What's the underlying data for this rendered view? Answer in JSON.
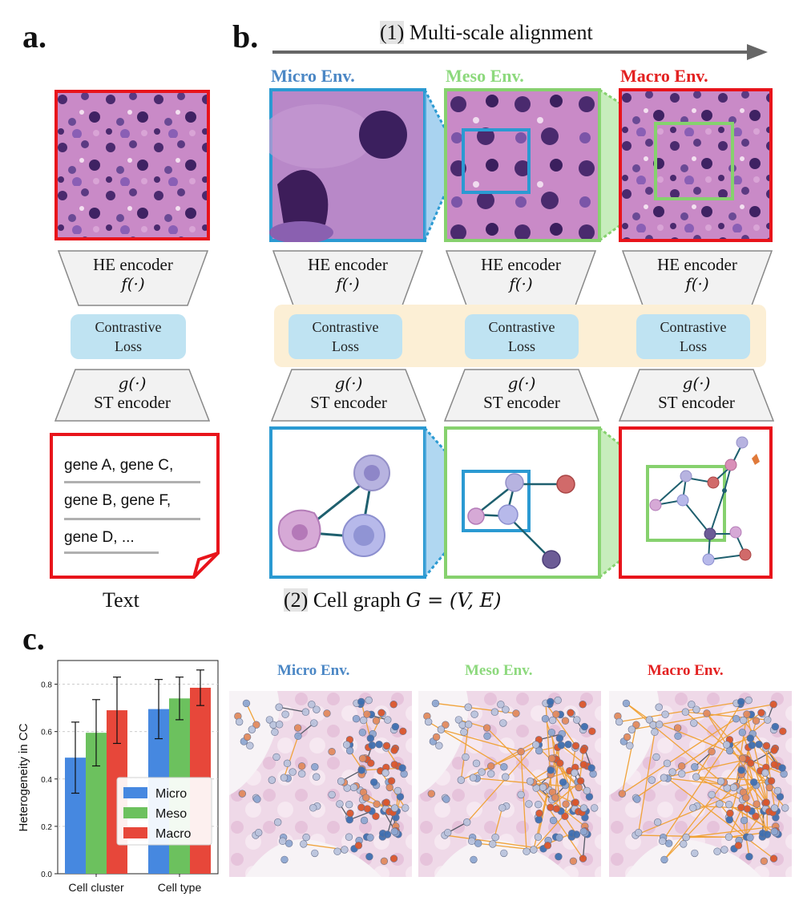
{
  "panels": {
    "a": "a.",
    "b": "b.",
    "c": "c."
  },
  "alignment": {
    "num": "(1)",
    "text": " Multi-scale alignment"
  },
  "env_titles": {
    "micro": "Micro Env.",
    "meso": "Meso Env.",
    "macro": "Macro Env."
  },
  "he_encoder": {
    "label_a": "HE  encoder",
    "label": "HE encoder",
    "func": "f(·)"
  },
  "st_encoder": {
    "label": "ST encoder",
    "func": "g(·)"
  },
  "contrastive": {
    "line1": "Contrastive",
    "line2": "Loss"
  },
  "text_doc": {
    "lines": [
      "gene A, gene C,",
      "gene B, gene F,",
      "gene D, ..."
    ],
    "caption": "Text"
  },
  "cell_graph": {
    "num": "(2)",
    "text": " Cell graph ",
    "formula": "G  =  (V, E)"
  },
  "chart_data": {
    "type": "bar",
    "categories": [
      "Cell cluster",
      "Cell type"
    ],
    "series": [
      {
        "name": "Micro",
        "values": [
          0.49,
          0.695
        ],
        "err": [
          0.15,
          0.125
        ]
      },
      {
        "name": "Meso",
        "values": [
          0.595,
          0.74
        ],
        "err": [
          0.14,
          0.09
        ]
      },
      {
        "name": "Macro",
        "values": [
          0.69,
          0.785
        ],
        "err": [
          0.14,
          0.075
        ]
      }
    ],
    "ylabel": "Heterogeneity in CC",
    "ylim": [
      0,
      0.9
    ],
    "yticks": [
      "0.0",
      "0.2",
      "0.4",
      "0.6",
      "0.8"
    ],
    "legend_position": "lower-right",
    "grid": "horizontal dashed"
  },
  "colors": {
    "micro": "#2b9ad2",
    "meso": "#86d16e",
    "macro": "#e8141b",
    "bar_micro": "#4688e0",
    "bar_meso": "#6cc15e",
    "bar_macro": "#e7473a",
    "envtitle_micro": "#4b87c5",
    "envtitle_meso": "#8dd97d",
    "envtitle_macro": "#e32121"
  },
  "c_titles": {
    "micro": "Micro Env.",
    "meso": "Meso Env.",
    "macro": "Macro Env."
  }
}
